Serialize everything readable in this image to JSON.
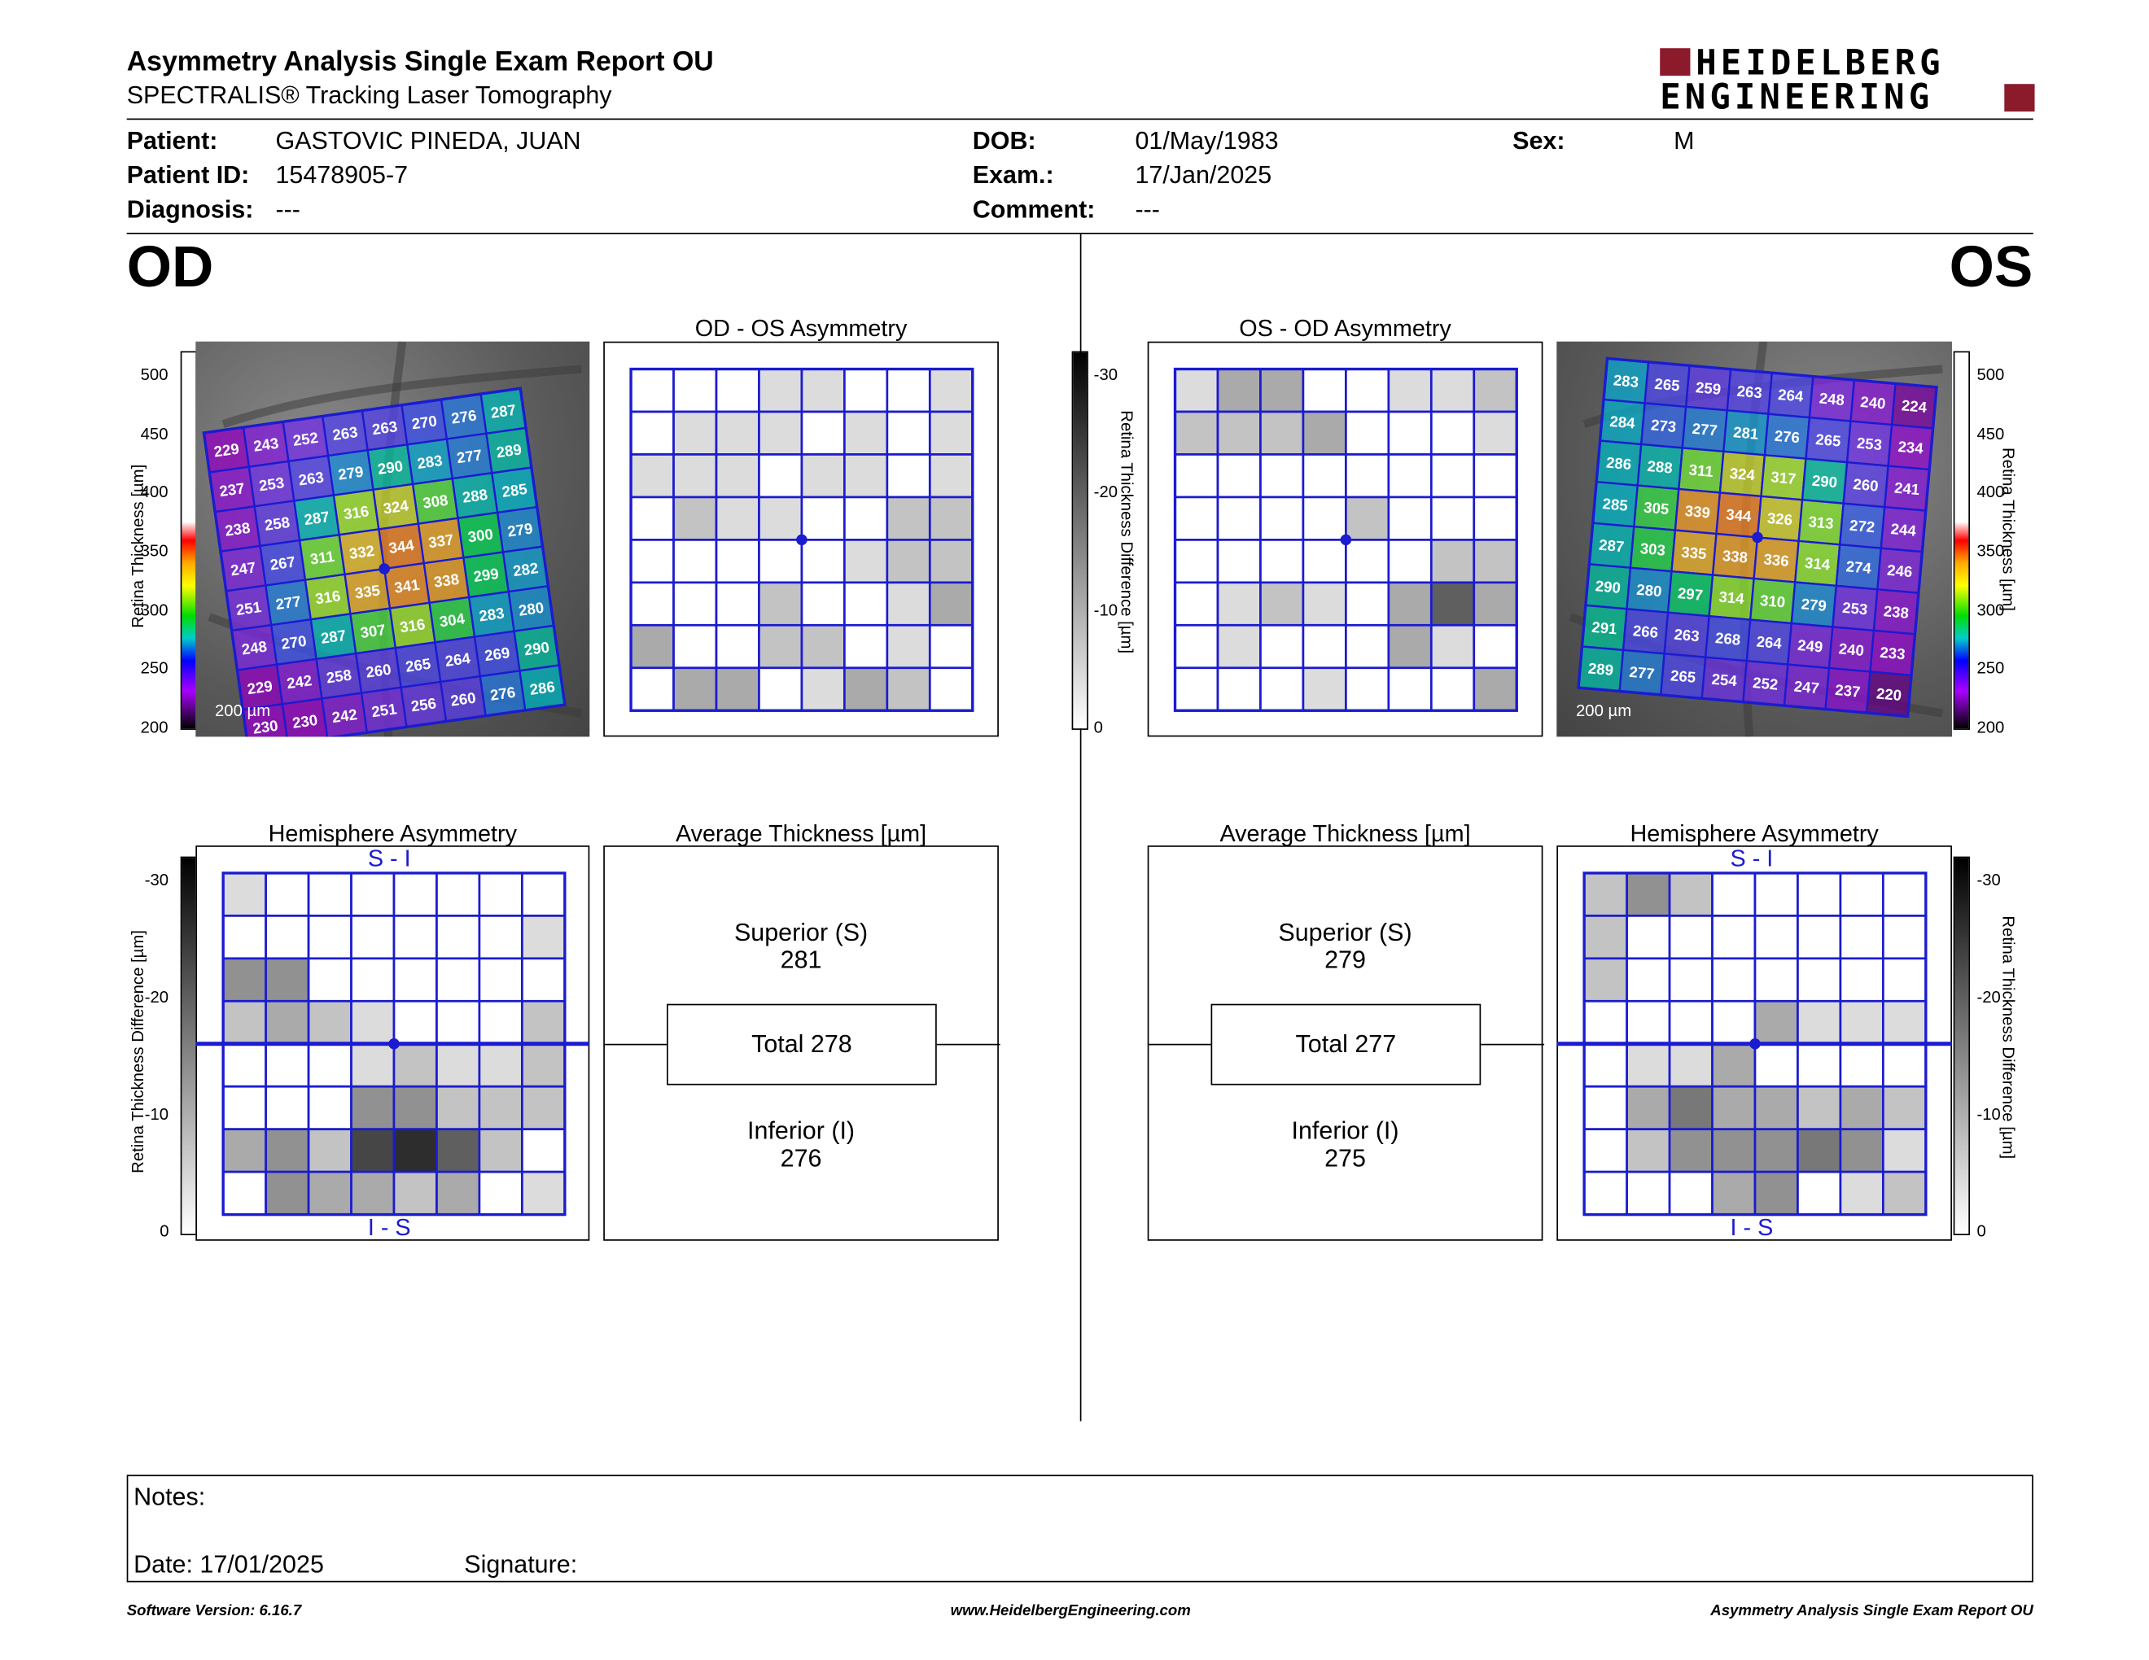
{
  "report": {
    "title": "Asymmetry Analysis Single Exam Report OU",
    "subtitle": "SPECTRALIS® Tracking Laser Tomography",
    "logo_line1": "HEIDELBERG",
    "logo_line2": "ENGINEERING"
  },
  "patient": {
    "patient_label": "Patient:",
    "patient_value": "GASTOVIC PINEDA, JUAN",
    "id_label": "Patient ID:",
    "id_value": "15478905-7",
    "diagnosis_label": "Diagnosis:",
    "diagnosis_value": "---",
    "dob_label": "DOB:",
    "dob_value": "01/May/1983",
    "exam_label": "Exam.:",
    "exam_value": "17/Jan/2025",
    "comment_label": "Comment:",
    "comment_value": "---",
    "sex_label": "Sex:",
    "sex_value": "M"
  },
  "eyes": {
    "od": "OD",
    "os": "OS"
  },
  "od": {
    "asym_title": "OD - OS Asymmetry",
    "hemi_title": "Hemisphere Asymmetry",
    "avg_title": "Average Thickness [µm]",
    "superior_label": "Superior (S)",
    "superior_value": "281",
    "total_label": "Total 278",
    "inferior_label": "Inferior (I)",
    "inferior_value": "276",
    "scale": "200 µm",
    "hemi_top": "S - I",
    "hemi_bottom": "I - S",
    "thickness_grid": [
      [
        "229",
        "243",
        "252",
        "263",
        "263",
        "270",
        "276",
        "287"
      ],
      [
        "237",
        "253",
        "263",
        "279",
        "290",
        "283",
        "277",
        "289"
      ],
      [
        "238",
        "258",
        "287",
        "316",
        "324",
        "308",
        "288",
        "285"
      ],
      [
        "247",
        "267",
        "311",
        "332",
        "344",
        "337",
        "300",
        "279"
      ],
      [
        "251",
        "277",
        "316",
        "335",
        "341",
        "338",
        "299",
        "282"
      ],
      [
        "248",
        "270",
        "287",
        "307",
        "316",
        "304",
        "283",
        "280"
      ],
      [
        "229",
        "242",
        "258",
        "260",
        "265",
        "264",
        "269",
        "290"
      ],
      [
        "230",
        "230",
        "242",
        "251",
        "256",
        "260",
        "276",
        "286"
      ]
    ],
    "asym_levels": [
      [
        0,
        0,
        0,
        1,
        1,
        0,
        0,
        1
      ],
      [
        0,
        1,
        1,
        1,
        0,
        1,
        0,
        1
      ],
      [
        1,
        1,
        1,
        0,
        1,
        1,
        0,
        1
      ],
      [
        0,
        2,
        1,
        1,
        0,
        0,
        2,
        2
      ],
      [
        0,
        0,
        0,
        0,
        0,
        1,
        2,
        2
      ],
      [
        0,
        0,
        0,
        2,
        0,
        0,
        1,
        3
      ],
      [
        3,
        0,
        0,
        2,
        2,
        0,
        1,
        0
      ],
      [
        0,
        3,
        3,
        0,
        1,
        3,
        2,
        0
      ]
    ],
    "hemi_levels": [
      [
        1,
        0,
        0,
        0,
        0,
        0,
        0,
        0
      ],
      [
        0,
        0,
        0,
        0,
        0,
        0,
        0,
        1
      ],
      [
        4,
        4,
        0,
        0,
        0,
        0,
        0,
        0
      ],
      [
        2,
        3,
        2,
        1,
        0,
        0,
        0,
        2
      ],
      [
        0,
        0,
        0,
        1,
        2,
        1,
        1,
        2
      ],
      [
        0,
        0,
        0,
        4,
        4,
        2,
        2,
        2
      ],
      [
        3,
        4,
        2,
        7,
        8,
        6,
        2,
        0
      ],
      [
        0,
        4,
        3,
        3,
        2,
        3,
        0,
        1
      ]
    ]
  },
  "os": {
    "asym_title": "OS - OD Asymmetry",
    "hemi_title": "Hemisphere Asymmetry",
    "avg_title": "Average Thickness [µm]",
    "superior_label": "Superior (S)",
    "superior_value": "279",
    "total_label": "Total 277",
    "inferior_label": "Inferior (I)",
    "inferior_value": "275",
    "scale": "200 µm",
    "hemi_top": "S - I",
    "hemi_bottom": "I - S",
    "thickness_grid": [
      [
        "283",
        "265",
        "259",
        "263",
        "264",
        "248",
        "240",
        "224"
      ],
      [
        "284",
        "273",
        "277",
        "281",
        "276",
        "265",
        "253",
        "234"
      ],
      [
        "286",
        "288",
        "311",
        "324",
        "317",
        "290",
        "260",
        "241"
      ],
      [
        "285",
        "305",
        "339",
        "344",
        "326",
        "313",
        "272",
        "244"
      ],
      [
        "287",
        "303",
        "335",
        "338",
        "336",
        "314",
        "274",
        "246"
      ],
      [
        "290",
        "280",
        "297",
        "314",
        "310",
        "279",
        "253",
        "238"
      ],
      [
        "291",
        "266",
        "263",
        "268",
        "264",
        "249",
        "240",
        "233"
      ],
      [
        "289",
        "277",
        "265",
        "254",
        "252",
        "247",
        "237",
        "220"
      ]
    ],
    "asym_levels": [
      [
        1,
        3,
        3,
        0,
        0,
        1,
        1,
        2
      ],
      [
        2,
        2,
        2,
        3,
        0,
        0,
        0,
        1
      ],
      [
        0,
        0,
        0,
        0,
        0,
        0,
        0,
        0
      ],
      [
        0,
        0,
        0,
        0,
        2,
        0,
        0,
        0
      ],
      [
        0,
        0,
        0,
        0,
        0,
        0,
        2,
        2
      ],
      [
        0,
        1,
        2,
        1,
        0,
        3,
        6,
        3
      ],
      [
        0,
        1,
        0,
        0,
        0,
        3,
        1,
        0
      ],
      [
        0,
        0,
        0,
        1,
        0,
        0,
        0,
        3
      ]
    ],
    "hemi_levels": [
      [
        2,
        4,
        2,
        0,
        0,
        0,
        0,
        0
      ],
      [
        2,
        0,
        0,
        0,
        0,
        0,
        0,
        0
      ],
      [
        2,
        0,
        0,
        0,
        0,
        0,
        0,
        0
      ],
      [
        0,
        0,
        0,
        0,
        3,
        1,
        1,
        1
      ],
      [
        0,
        1,
        1,
        3,
        0,
        0,
        0,
        0
      ],
      [
        0,
        3,
        5,
        3,
        3,
        2,
        3,
        2
      ],
      [
        0,
        2,
        4,
        4,
        4,
        5,
        4,
        1
      ],
      [
        0,
        0,
        0,
        3,
        4,
        0,
        1,
        2
      ]
    ]
  },
  "colorbar_thickness": {
    "ticks": [
      "500",
      "450",
      "400",
      "350",
      "300",
      "250",
      "200"
    ],
    "label": "Retina Thickness [µm]"
  },
  "colorbar_diff": {
    "ticks": [
      "-30",
      "-20",
      "-10",
      "0"
    ],
    "label": "Retina Thickness Difference [µm]"
  },
  "notes": {
    "notes_label": "Notes:",
    "date_label": "Date: 17/01/2025",
    "signature_label": "Signature:"
  },
  "footer": {
    "version": "Software Version: 6.16.7",
    "website": "www.HeidelbergEngineering.com",
    "report_name": "Asymmetry Analysis Single Exam Report OU"
  },
  "colors": {
    "grid_blue": "#1b1bd0",
    "brand_red": "#8b1a2b"
  }
}
